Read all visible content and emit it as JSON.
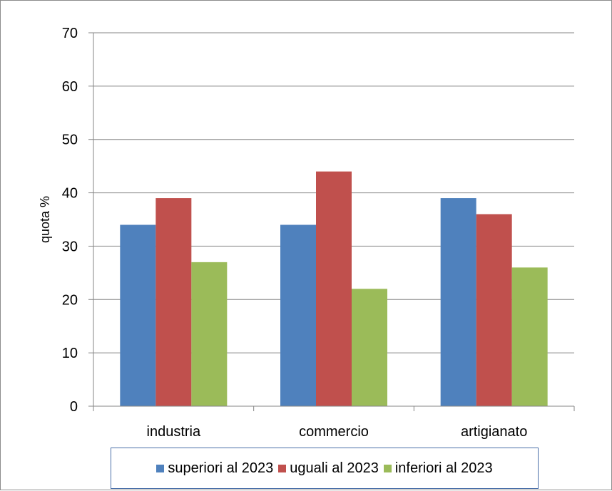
{
  "chart_data": {
    "type": "bar",
    "categories": [
      "industria",
      "commercio",
      "artigianato"
    ],
    "series": [
      {
        "name": "superiori al 2023",
        "values": [
          34,
          34,
          39
        ],
        "color": "#4f81bd"
      },
      {
        "name": "uguali al 2023",
        "values": [
          39,
          44,
          36
        ],
        "color": "#c0504d"
      },
      {
        "name": "inferiori al 2023",
        "values": [
          27,
          22,
          26
        ],
        "color": "#9bbb59"
      }
    ],
    "title": "",
    "xlabel": "",
    "ylabel": "quota %",
    "ylim": [
      0,
      70
    ],
    "yticks": [
      0,
      10,
      20,
      30,
      40,
      50,
      60,
      70
    ],
    "grid": true,
    "legend_position": "bottom"
  }
}
